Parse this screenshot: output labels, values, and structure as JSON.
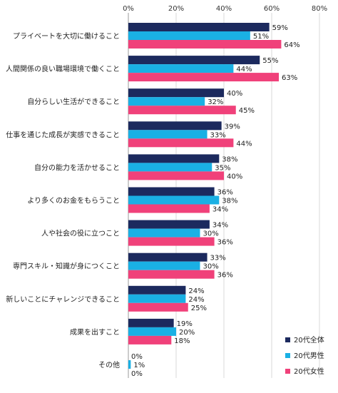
{
  "chart_data": {
    "type": "bar",
    "orientation": "horizontal",
    "xlim": [
      0,
      80
    ],
    "ticks": [
      "0%",
      "20%",
      "40%",
      "60%",
      "80%"
    ],
    "tick_values": [
      0,
      20,
      40,
      60,
      80
    ],
    "grid": true,
    "legend_position": "bottom-right",
    "categories": [
      "プライベートを大切に働けること",
      "人間関係の良い職場環境で働くこと",
      "自分らしい生活ができること",
      "仕事を通じた成長が実感できること",
      "自分の能力を活かせること",
      "より多くのお金をもらうこと",
      "人や社会の役に立つこと",
      "専門スキル・知識が身につくこと",
      "新しいことにチャレンジできること",
      "成果を出すこと",
      "その他"
    ],
    "series": [
      {
        "name": "20代全体",
        "color": "#1c2a5e",
        "values": [
          59,
          55,
          40,
          39,
          38,
          36,
          34,
          33,
          24,
          19,
          0
        ]
      },
      {
        "name": "20代男性",
        "color": "#1ab0e4",
        "values": [
          51,
          44,
          32,
          33,
          35,
          38,
          30,
          30,
          24,
          20,
          1
        ]
      },
      {
        "name": "20代女性",
        "color": "#f0417a",
        "values": [
          64,
          63,
          45,
          44,
          40,
          34,
          36,
          36,
          25,
          18,
          0
        ]
      }
    ],
    "value_suffix": "%"
  }
}
